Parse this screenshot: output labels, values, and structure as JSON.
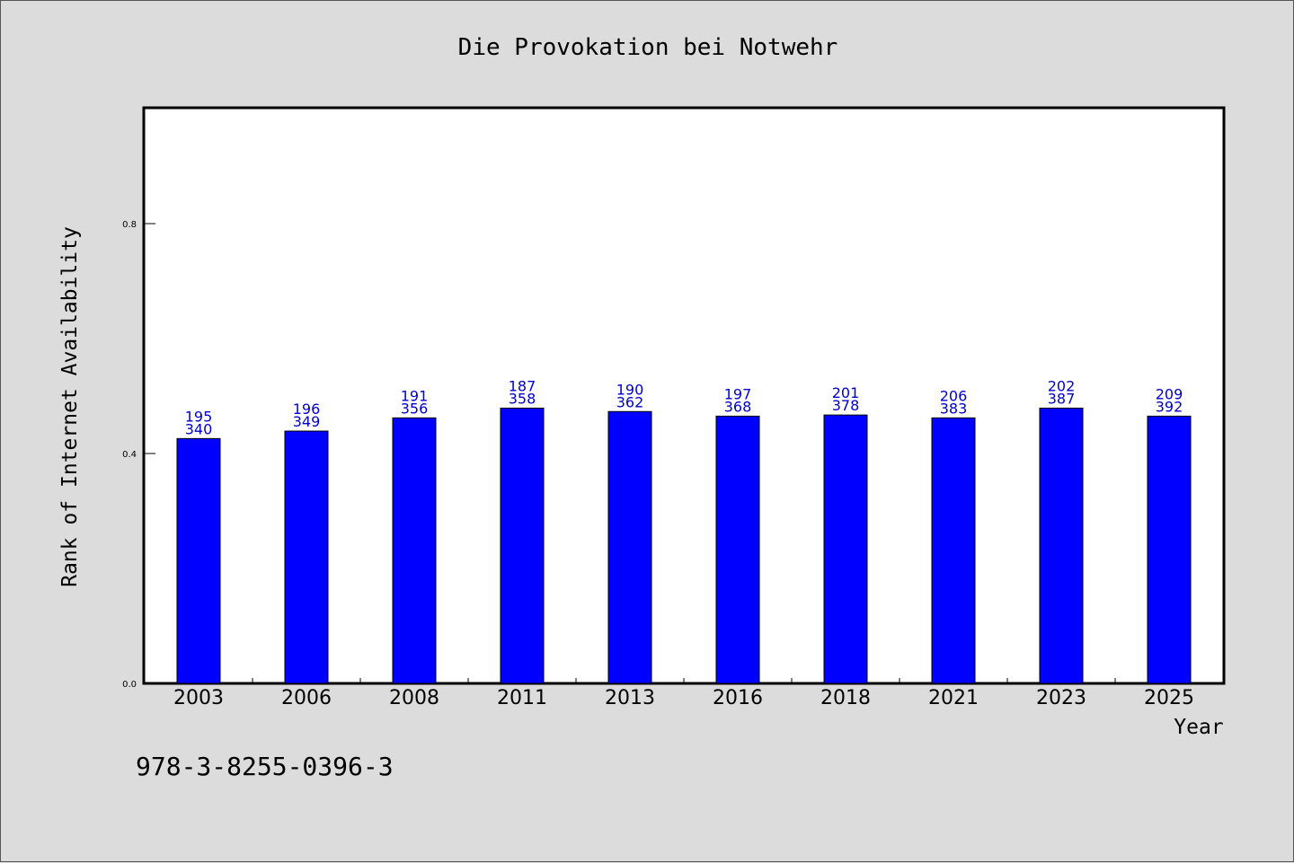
{
  "chart_data": {
    "type": "bar",
    "title": "Die Provokation bei Notwehr",
    "xlabel": "Year",
    "ylabel": "Rank of Internet Availability",
    "categories": [
      "2003",
      "2006",
      "2008",
      "2011",
      "2013",
      "2016",
      "2018",
      "2021",
      "2023",
      "2025"
    ],
    "values": [
      0.426,
      0.439,
      0.462,
      0.479,
      0.473,
      0.465,
      0.467,
      0.462,
      0.479,
      0.465
    ],
    "labels_top": [
      "195",
      "196",
      "191",
      "187",
      "190",
      "197",
      "201",
      "206",
      "202",
      "209"
    ],
    "labels_bottom": [
      "340",
      "349",
      "356",
      "358",
      "362",
      "368",
      "378",
      "383",
      "387",
      "392"
    ],
    "yticks": [
      "0.0",
      "0.4",
      "0.8"
    ],
    "ylim": [
      0,
      1.0
    ],
    "grid": false,
    "bar_color": "#0000ff",
    "label_color": "#0000cc"
  },
  "footer": {
    "isbn": "978-3-8255-0396-3"
  }
}
